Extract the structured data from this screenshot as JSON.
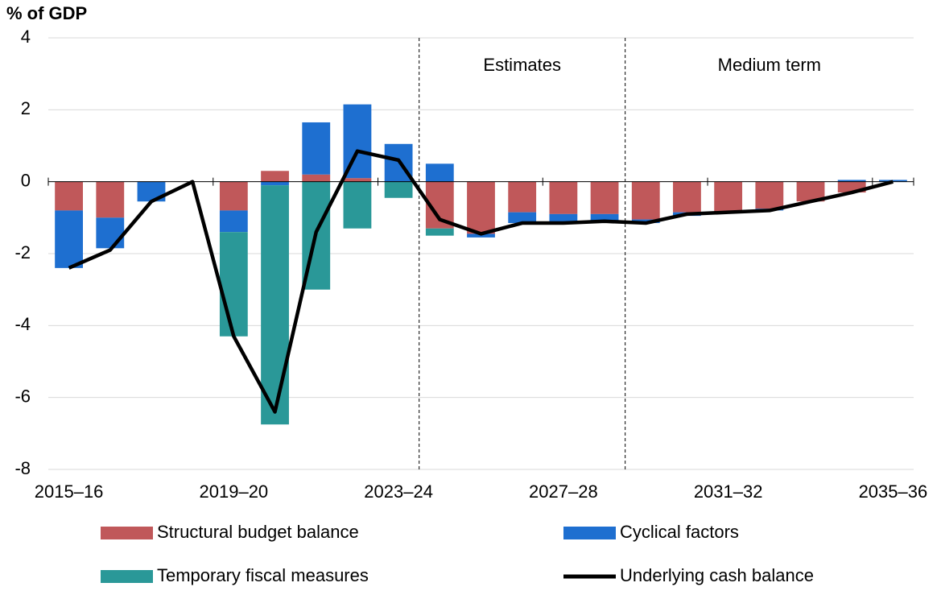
{
  "chart_data": {
    "type": "bar-line",
    "ylabel": "% of GDP",
    "categories": [
      "2015–16",
      null,
      null,
      null,
      "2019–20",
      null,
      null,
      null,
      "2023–24",
      null,
      null,
      null,
      "2027–28",
      null,
      null,
      null,
      "2031–32",
      null,
      null,
      null,
      "2035–36"
    ],
    "series": [
      {
        "name": "Structural budget balance",
        "type": "bar",
        "color": "#c0585a",
        "values": [
          -0.8,
          -1.0,
          0,
          0,
          -0.8,
          0.3,
          0.2,
          0.1,
          0,
          -1.3,
          -1.45,
          -0.85,
          -0.9,
          -0.9,
          -1.05,
          -0.85,
          -0.85,
          -0.75,
          -0.55,
          -0.3,
          0
        ]
      },
      {
        "name": "Cyclical factors",
        "type": "bar",
        "color": "#1e6fd0",
        "values": [
          -1.6,
          -0.85,
          -0.55,
          0,
          -0.6,
          -0.1,
          1.45,
          2.05,
          1.05,
          0.5,
          -0.1,
          -0.3,
          -0.25,
          -0.2,
          -0.1,
          -0.1,
          0,
          -0.05,
          0,
          0.05,
          0.05
        ]
      },
      {
        "name": "Temporary fiscal measures",
        "type": "bar",
        "color": "#2a9898",
        "values": [
          0,
          0,
          0,
          0,
          -2.9,
          -6.65,
          -3.0,
          -1.3,
          -0.45,
          -0.2,
          0,
          0,
          0,
          0,
          0,
          0,
          0,
          0,
          0,
          0,
          0
        ]
      },
      {
        "name": "Underlying cash balance",
        "type": "line",
        "color": "#000000",
        "values": [
          -2.4,
          -1.9,
          -0.55,
          0,
          -4.3,
          -6.4,
          -1.4,
          0.85,
          0.6,
          -1.05,
          -1.45,
          -1.15,
          -1.15,
          -1.1,
          -1.15,
          -0.9,
          -0.85,
          -0.8,
          -0.55,
          -0.3,
          0
        ]
      }
    ],
    "annotations": [
      "Estimates",
      "Medium term"
    ],
    "ylim": [
      -8,
      4
    ],
    "yticks": [
      -8,
      -6,
      -4,
      -2,
      0,
      2,
      4
    ],
    "grid": true
  }
}
